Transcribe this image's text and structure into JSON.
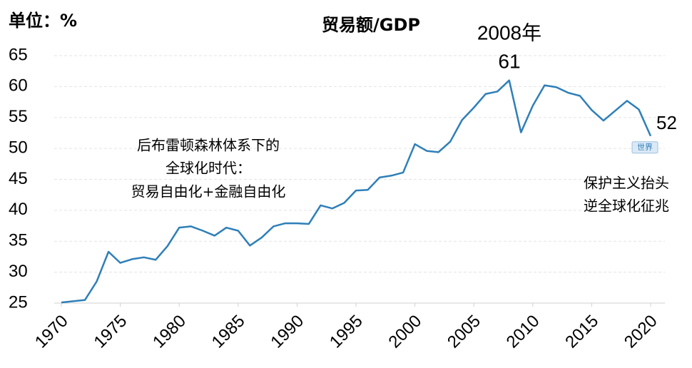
{
  "chart_data": {
    "type": "line",
    "title": "贸易额/GDP",
    "unit_label": "单位：%",
    "x": [
      1970,
      1971,
      1972,
      1973,
      1974,
      1975,
      1976,
      1977,
      1978,
      1979,
      1980,
      1981,
      1982,
      1983,
      1984,
      1985,
      1986,
      1987,
      1988,
      1989,
      1990,
      1991,
      1992,
      1993,
      1994,
      1995,
      1996,
      1997,
      1998,
      1999,
      2000,
      2001,
      2002,
      2003,
      2004,
      2005,
      2006,
      2007,
      2008,
      2009,
      2010,
      2011,
      2012,
      2013,
      2014,
      2015,
      2016,
      2017,
      2018,
      2019,
      2020
    ],
    "series": [
      {
        "name": "世界",
        "color": "#2e7fb8",
        "values": [
          25.1,
          25.3,
          25.5,
          28.5,
          33.3,
          31.5,
          32.1,
          32.4,
          32.0,
          34.2,
          37.2,
          37.4,
          36.7,
          35.9,
          37.2,
          36.7,
          34.3,
          35.6,
          37.4,
          37.9,
          37.9,
          37.8,
          40.8,
          40.3,
          41.2,
          43.2,
          43.3,
          45.3,
          45.6,
          46.1,
          50.7,
          49.6,
          49.4,
          51.1,
          54.6,
          56.6,
          58.8,
          59.2,
          61,
          52.6,
          56.9,
          60.2,
          59.9,
          59.0,
          58.5,
          56.2,
          54.5,
          56.1,
          57.7,
          56.3,
          52
        ]
      }
    ],
    "xlim": [
      1970,
      2020
    ],
    "xticks": [
      1970,
      1975,
      1980,
      1985,
      1990,
      1995,
      2000,
      2005,
      2010,
      2015,
      2020
    ],
    "ylim": [
      25,
      65
    ],
    "yticks": [
      25,
      30,
      35,
      40,
      45,
      50,
      55,
      60,
      65
    ],
    "grid": true,
    "annotations": [
      "2008年",
      "61",
      "52",
      "后布雷顿森林体系下的",
      "全球化时代：",
      "贸易自由化+金融自由化",
      "保护主义抬头",
      "逆全球化征兆"
    ]
  }
}
